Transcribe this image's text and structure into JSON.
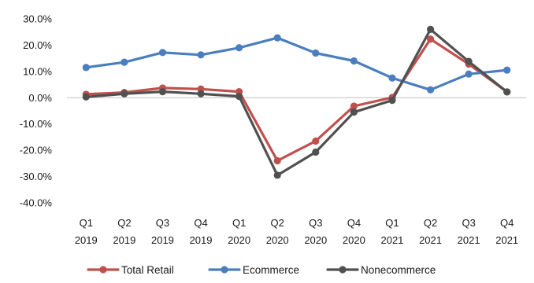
{
  "chart_data": {
    "type": "line",
    "title": "",
    "xlabel": "",
    "ylabel": "",
    "categories": [
      [
        "Q1",
        "2019"
      ],
      [
        "Q2",
        "2019"
      ],
      [
        "Q3",
        "2019"
      ],
      [
        "Q4",
        "2019"
      ],
      [
        "Q1",
        "2020"
      ],
      [
        "Q2",
        "2020"
      ],
      [
        "Q3",
        "2020"
      ],
      [
        "Q4",
        "2020"
      ],
      [
        "Q1",
        "2021"
      ],
      [
        "Q2",
        "2021"
      ],
      [
        "Q3",
        "2021"
      ],
      [
        "Q4",
        "2021"
      ]
    ],
    "ylim": [
      -40,
      30
    ],
    "yticks": [
      30,
      20,
      10,
      0,
      -10,
      -20,
      -30,
      -40
    ],
    "ytick_labels": [
      "30.0%",
      "20.0%",
      "10.0%",
      "0.0%",
      "-10.0%",
      "-20.0%",
      "-30.0%",
      "-40.0%"
    ],
    "grid": false,
    "legend_position": "bottom",
    "series": [
      {
        "name": "Total Retail",
        "color": "#c0504d",
        "values": [
          1.3,
          2.0,
          3.7,
          3.3,
          2.3,
          -24.0,
          -16.5,
          -3.2,
          0.1,
          22.3,
          12.8,
          2.2
        ]
      },
      {
        "name": "Ecommerce",
        "color": "#4a7ebf",
        "values": [
          11.5,
          13.5,
          17.2,
          16.3,
          19.0,
          22.8,
          17.0,
          14.0,
          7.5,
          3.0,
          9.0,
          10.5
        ]
      },
      {
        "name": "Nonecommerce",
        "color": "#505050",
        "values": [
          0.3,
          1.5,
          2.3,
          1.5,
          0.5,
          -29.5,
          -20.7,
          -5.5,
          -1.0,
          26.0,
          13.8,
          2.2
        ]
      }
    ]
  }
}
